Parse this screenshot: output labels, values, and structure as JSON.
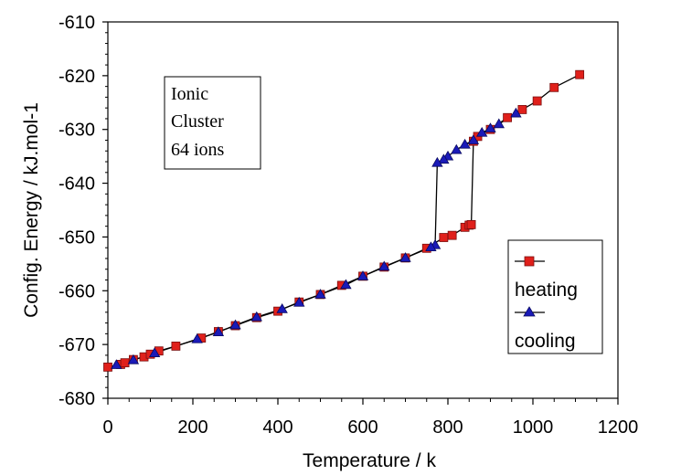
{
  "chart_data": {
    "type": "scatter",
    "title": "",
    "xlabel": "Temperature / k",
    "ylabel": "Config. Energy / kJ.mol-1",
    "xlim": [
      0,
      1200
    ],
    "ylim": [
      -680,
      -610
    ],
    "x_ticks": [
      0,
      200,
      400,
      600,
      800,
      1000,
      1200
    ],
    "y_ticks": [
      -680,
      -670,
      -660,
      -650,
      -640,
      -630,
      -620,
      -610
    ],
    "grid": false,
    "legend": "right",
    "annotation": [
      "Ionic",
      "Cluster",
      "64 ions"
    ],
    "series": [
      {
        "name": "heating",
        "marker": "square",
        "color": "#e0201b",
        "x": [
          0,
          30,
          40,
          60,
          85,
          100,
          120,
          160,
          220,
          260,
          300,
          350,
          400,
          450,
          500,
          550,
          600,
          650,
          700,
          750,
          790,
          810,
          840,
          850,
          855,
          860,
          870,
          900,
          940,
          975,
          1010,
          1050,
          1110
        ],
        "y": [
          -674.2,
          -673.7,
          -673.4,
          -672.8,
          -672.3,
          -671.8,
          -671.2,
          -670.3,
          -668.8,
          -667.6,
          -666.5,
          -665.0,
          -663.8,
          -662.1,
          -660.7,
          -659.0,
          -657.3,
          -655.6,
          -653.9,
          -652.1,
          -650.1,
          -649.7,
          -648.2,
          -647.8,
          -647.7,
          -632.2,
          -631.3,
          -630.0,
          -627.8,
          -626.3,
          -624.7,
          -622.2,
          -619.8
        ]
      },
      {
        "name": "cooling",
        "marker": "triangle",
        "color": "#1a1ab8",
        "x": [
          960,
          920,
          900,
          880,
          860,
          840,
          820,
          800,
          790,
          775,
          770,
          760,
          700,
          650,
          600,
          560,
          500,
          450,
          410,
          350,
          300,
          260,
          210,
          110,
          60,
          20
        ],
        "y": [
          -627.0,
          -629.0,
          -629.8,
          -630.6,
          -632.0,
          -632.8,
          -633.8,
          -635.0,
          -635.6,
          -636.2,
          -651.5,
          -651.9,
          -653.9,
          -655.5,
          -657.3,
          -658.9,
          -660.7,
          -662.2,
          -663.4,
          -664.9,
          -666.4,
          -667.7,
          -669.0,
          -671.6,
          -672.9,
          -673.8
        ]
      }
    ]
  }
}
